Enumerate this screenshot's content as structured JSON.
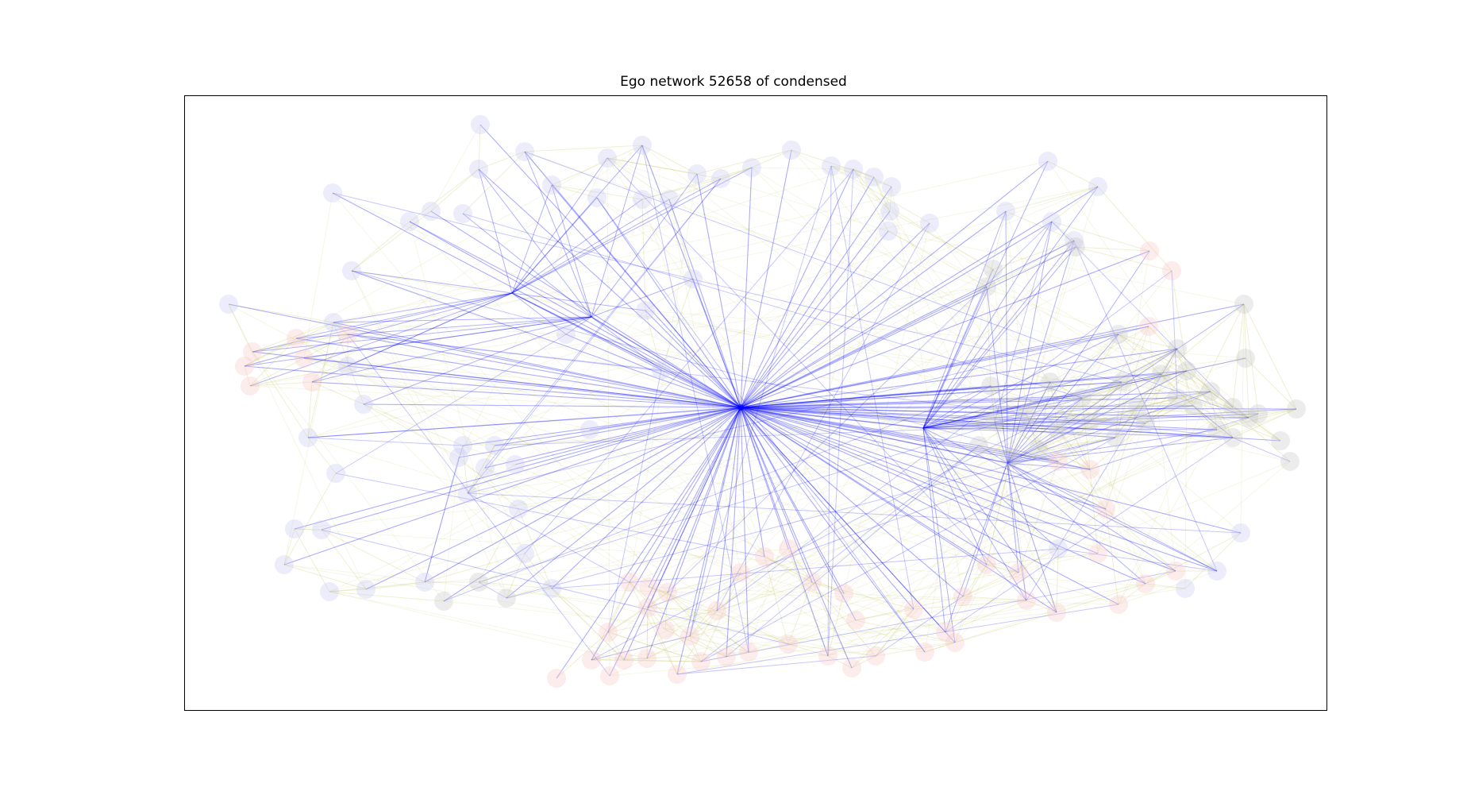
{
  "title": "Ego network 52658 of condensed",
  "colors": {
    "ego_edge": "#0000ff",
    "other_edge": "#b5b83a",
    "node_group_blue": "#c8c8f0",
    "node_group_red": "#f5c8c8",
    "node_group_gray": "#c8c8c8"
  },
  "chart_data": {
    "type": "network",
    "ego_node": "52658",
    "node_groups": [
      "blue",
      "red",
      "gray"
    ],
    "edge_styles": [
      "ego edges: blue, semi-transparent",
      "other edges: yellow-olive, faint"
    ],
    "axes_ticks": "none"
  }
}
